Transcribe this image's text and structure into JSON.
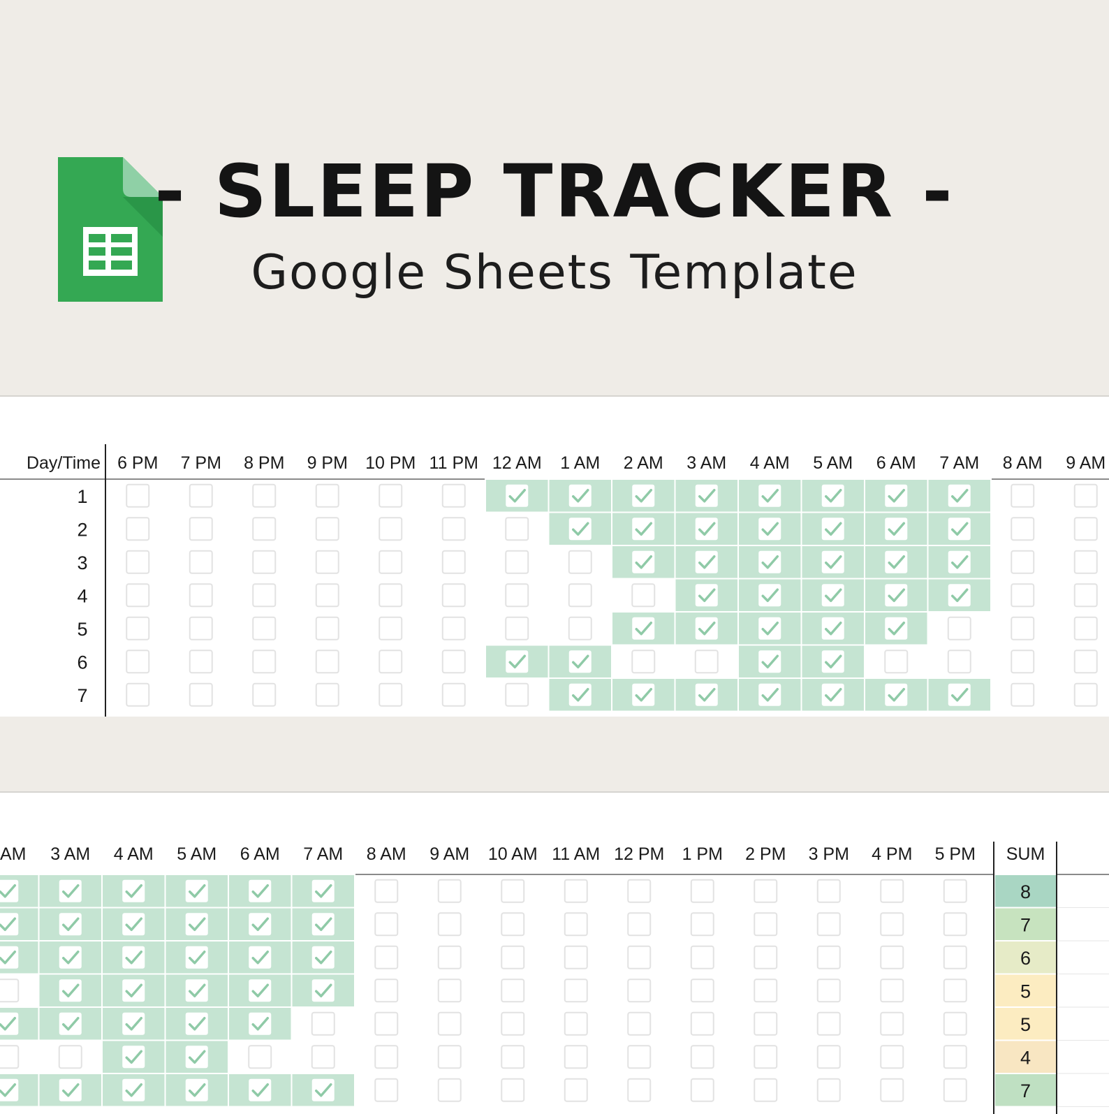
{
  "header": {
    "title": "- SLEEP TRACKER -",
    "subtitle": "Google Sheets Template",
    "logo_icon": "google-sheets-icon"
  },
  "colors": {
    "background": "#efece7",
    "logo_green": "#34a853",
    "checked_fill": "#c5e4d2",
    "checkbox_border": "#e4e4e4",
    "grid_line": "#ffffff",
    "sum_high": "#a9d6c3",
    "sum_mid": "#c7e3bf",
    "sum_lowmid": "#e6ebc7",
    "sum_low": "#fcecc1",
    "sum_lowest": "#f8e6c2"
  },
  "top_table": {
    "corner_label": "Day/Time",
    "columns": [
      "6 PM",
      "7 PM",
      "8 PM",
      "9 PM",
      "10 PM",
      "11 PM",
      "12 AM",
      "1 AM",
      "2 AM",
      "3 AM",
      "4 AM",
      "5 AM",
      "6 AM",
      "7 AM",
      "8 AM",
      "9 AM"
    ],
    "days": [
      "1",
      "2",
      "3",
      "4",
      "5",
      "6",
      "7"
    ],
    "checked": [
      [
        false,
        false,
        false,
        false,
        false,
        false,
        true,
        true,
        true,
        true,
        true,
        true,
        true,
        true,
        false,
        false
      ],
      [
        false,
        false,
        false,
        false,
        false,
        false,
        false,
        true,
        true,
        true,
        true,
        true,
        true,
        true,
        false,
        false
      ],
      [
        false,
        false,
        false,
        false,
        false,
        false,
        false,
        false,
        true,
        true,
        true,
        true,
        true,
        true,
        false,
        false
      ],
      [
        false,
        false,
        false,
        false,
        false,
        false,
        false,
        false,
        false,
        true,
        true,
        true,
        true,
        true,
        false,
        false
      ],
      [
        false,
        false,
        false,
        false,
        false,
        false,
        false,
        false,
        true,
        true,
        true,
        true,
        true,
        false,
        false,
        false
      ],
      [
        false,
        false,
        false,
        false,
        false,
        false,
        true,
        true,
        false,
        false,
        true,
        true,
        false,
        false,
        false,
        false
      ],
      [
        false,
        false,
        false,
        false,
        false,
        false,
        false,
        true,
        true,
        true,
        true,
        true,
        true,
        true,
        false,
        false
      ]
    ]
  },
  "bottom_table": {
    "columns": [
      "AM",
      "3 AM",
      "4 AM",
      "5 AM",
      "6 AM",
      "7 AM",
      "8 AM",
      "9 AM",
      "10 AM",
      "11 AM",
      "12 PM",
      "1 PM",
      "2 PM",
      "3 PM",
      "4 PM",
      "5 PM"
    ],
    "sum_label": "SUM",
    "checked": [
      [
        true,
        true,
        true,
        true,
        true,
        true,
        false,
        false,
        false,
        false,
        false,
        false,
        false,
        false,
        false,
        false
      ],
      [
        true,
        true,
        true,
        true,
        true,
        true,
        false,
        false,
        false,
        false,
        false,
        false,
        false,
        false,
        false,
        false
      ],
      [
        true,
        true,
        true,
        true,
        true,
        true,
        false,
        false,
        false,
        false,
        false,
        false,
        false,
        false,
        false,
        false
      ],
      [
        false,
        true,
        true,
        true,
        true,
        true,
        false,
        false,
        false,
        false,
        false,
        false,
        false,
        false,
        false,
        false
      ],
      [
        true,
        true,
        true,
        true,
        true,
        false,
        false,
        false,
        false,
        false,
        false,
        false,
        false,
        false,
        false,
        false
      ],
      [
        false,
        false,
        true,
        true,
        false,
        false,
        false,
        false,
        false,
        false,
        false,
        false,
        false,
        false,
        false,
        false
      ],
      [
        true,
        true,
        true,
        true,
        true,
        true,
        false,
        false,
        false,
        false,
        false,
        false,
        false,
        false,
        false,
        false
      ]
    ],
    "sums": [
      "8",
      "7",
      "6",
      "5",
      "5",
      "4",
      "7"
    ],
    "sum_colors": [
      "#a9d6c3",
      "#c7e3bf",
      "#e6ebc7",
      "#fcecc1",
      "#fcecc1",
      "#f8e6c2",
      "#bfe0c2"
    ]
  }
}
